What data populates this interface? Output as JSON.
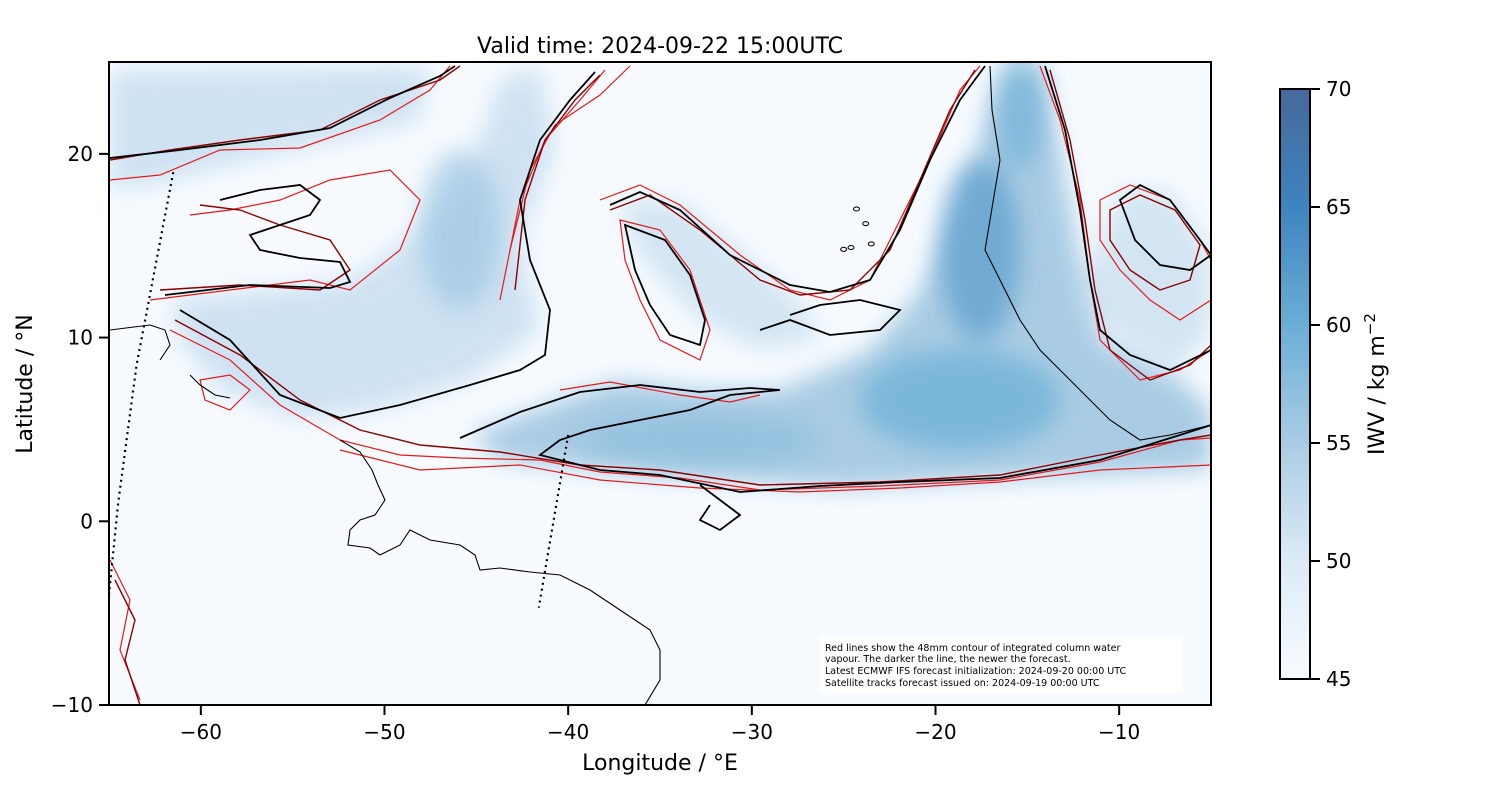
{
  "title": "Valid time: 2024-09-22 15:00UTC",
  "xlabel": "Longitude / °E",
  "ylabel": "Latitude / °N",
  "colorbar_label": "IWV / kg m",
  "colorbar_label_sup": "−2",
  "note": [
    "Red lines show the 48mm contour of integrated column water",
    "vapour. The darker the line, the newer the forecast.",
    "Latest ECMWF IFS forecast initialization: 2024-09-20 00:00 UTC",
    "Satellite tracks forecast issued on: 2024-09-19 00:00 UTC"
  ],
  "chart_data": {
    "type": "heatmap",
    "xlim": [
      -65,
      -5
    ],
    "ylim": [
      -10,
      25
    ],
    "xticks": [
      -60,
      -50,
      -40,
      -30,
      -20,
      -10
    ],
    "yticks": [
      -10,
      0,
      10,
      20
    ],
    "colorbar": {
      "min": 45,
      "max": 70,
      "ticks": [
        45,
        50,
        55,
        60,
        65,
        70
      ],
      "colors": [
        "#f7fbff",
        "#dceaf6",
        "#a9cce4",
        "#6aaed6",
        "#3e84bf",
        "#46689b"
      ]
    },
    "contour_level_mm": 48,
    "satellite_tracks": [
      {
        "points": [
          [
            -61.5,
            19
          ],
          [
            -63.5,
            8.5
          ],
          [
            -64.5,
            1
          ],
          [
            -65,
            -4
          ]
        ]
      },
      {
        "points": [
          [
            -40,
            4.7
          ],
          [
            -41.6,
            -4.7
          ]
        ]
      }
    ],
    "islands_lonlat": [
      [
        -24.3,
        17
      ],
      [
        -23.8,
        16.2
      ],
      [
        -23.5,
        15.1
      ],
      [
        -25,
        14.8
      ],
      [
        -24.6,
        14.9
      ]
    ]
  }
}
